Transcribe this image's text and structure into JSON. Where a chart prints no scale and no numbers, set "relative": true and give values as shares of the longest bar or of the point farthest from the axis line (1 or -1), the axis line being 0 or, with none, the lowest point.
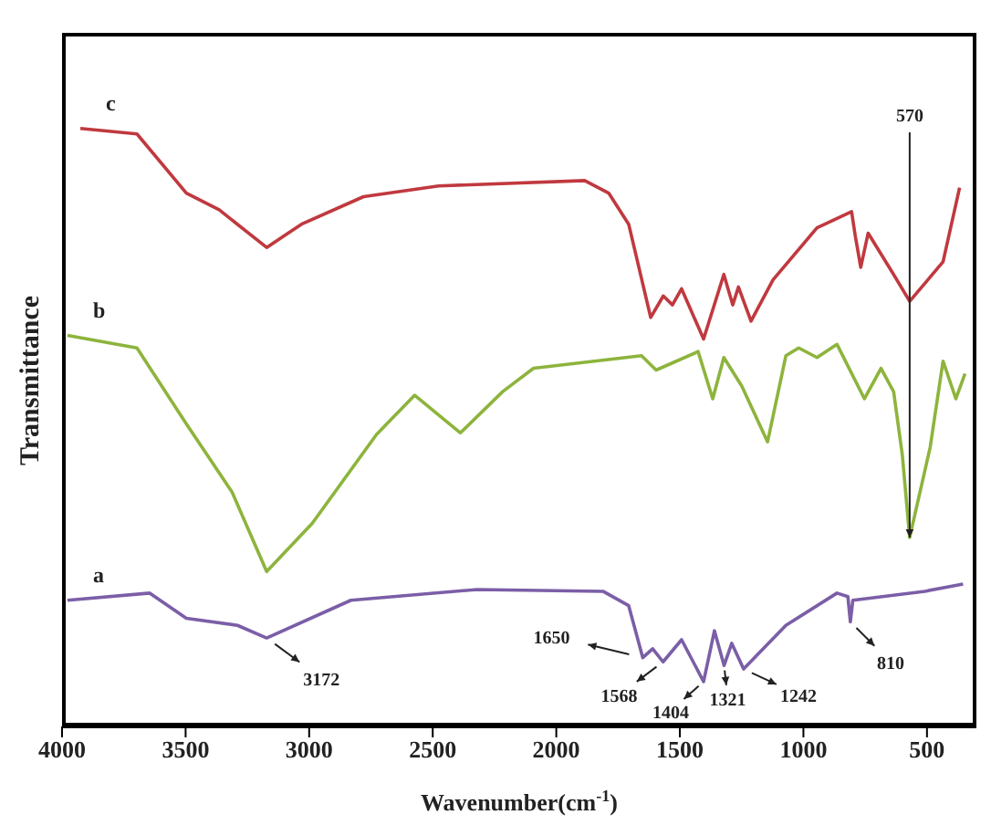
{
  "chart_data": {
    "type": "line",
    "relative": true,
    "xlabel": "Wavenumber(cm$^{-1}$)",
    "ylabel": "Transmittance",
    "xlim": [
      4000,
      300
    ],
    "xticks": [
      4000,
      3500,
      3000,
      2500,
      2000,
      1500,
      1000,
      500
    ],
    "marker": "none",
    "line_style": "solid",
    "series": [
      {
        "name": "c",
        "color": "#c0393f",
        "x": [
          3926,
          3697,
          3497,
          3364,
          3172,
          3031,
          2780,
          2476,
          1885,
          1788,
          1707,
          1618,
          1567,
          1530,
          1493,
          1404,
          1322,
          1286,
          1263,
          1212,
          1123,
          945,
          805,
          790,
          768,
          738,
          635,
          570,
          435,
          368
        ],
        "values": [
          1.0,
          0.991,
          0.892,
          0.864,
          0.801,
          0.84,
          0.886,
          0.904,
          0.913,
          0.892,
          0.84,
          0.684,
          0.72,
          0.705,
          0.732,
          0.648,
          0.756,
          0.705,
          0.735,
          0.678,
          0.747,
          0.834,
          0.861,
          0.82,
          0.768,
          0.825,
          0.756,
          0.711,
          0.777,
          0.901
        ]
      },
      {
        "name": "b",
        "color": "#8db43c",
        "x": [
          3978,
          3697,
          3497,
          3312,
          3172,
          2987,
          2728,
          2573,
          2388,
          2217,
          2092,
          1655,
          1596,
          1426,
          1367,
          1322,
          1249,
          1145,
          1071,
          1019,
          945,
          864,
          753,
          686,
          635,
          600,
          570,
          487,
          435,
          383,
          346
        ],
        "values": [
          0.654,
          0.633,
          0.506,
          0.392,
          0.259,
          0.34,
          0.488,
          0.554,
          0.491,
          0.56,
          0.599,
          0.62,
          0.596,
          0.627,
          0.548,
          0.617,
          0.569,
          0.476,
          0.62,
          0.633,
          0.617,
          0.639,
          0.548,
          0.599,
          0.56,
          0.455,
          0.316,
          0.467,
          0.611,
          0.548,
          0.59
        ]
      },
      {
        "name": "a",
        "color": "#7b5ea7",
        "x": [
          3978,
          3645,
          3497,
          3290,
          3172,
          2831,
          2321,
          1811,
          1707,
          1650,
          1610,
          1568,
          1493,
          1404,
          1360,
          1321,
          1290,
          1242,
          1071,
          864,
          820,
          810,
          800,
          509,
          354
        ],
        "values": [
          0.211,
          0.223,
          0.181,
          0.169,
          0.148,
          0.211,
          0.229,
          0.226,
          0.202,
          0.115,
          0.13,
          0.108,
          0.145,
          0.075,
          0.16,
          0.102,
          0.139,
          0.096,
          0.169,
          0.223,
          0.217,
          0.175,
          0.211,
          0.226,
          0.238
        ]
      }
    ],
    "annotations": [
      {
        "text": "570",
        "x": 570,
        "y": 0.316
      },
      {
        "text": "3172",
        "x": 3172,
        "y": 0.148
      },
      {
        "text": "1650",
        "x": 1650,
        "y": 0.115
      },
      {
        "text": "1568",
        "x": 1568,
        "y": 0.108
      },
      {
        "text": "1404",
        "x": 1404,
        "y": 0.075
      },
      {
        "text": "1321",
        "x": 1321,
        "y": 0.102
      },
      {
        "text": "1242",
        "x": 1242,
        "y": 0.096
      },
      {
        "text": "810",
        "x": 810,
        "y": 0.175
      }
    ]
  }
}
